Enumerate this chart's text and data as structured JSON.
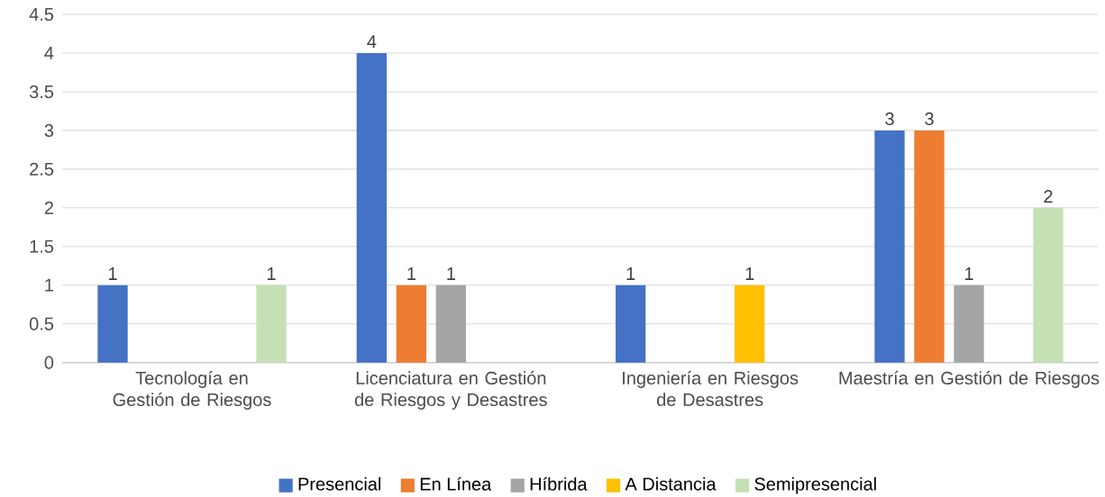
{
  "chart_data": {
    "type": "bar",
    "categories": [
      "Tecnología en Gestión de Riesgos",
      "Licenciatura en Gestión de Riesgos y Desastres",
      "Ingeniería en Riesgos de Desastres",
      "Maestría en Gestión de Riesgos"
    ],
    "series": [
      {
        "name": "Presencial",
        "color": "#4472c4",
        "values": [
          1,
          4,
          1,
          3
        ]
      },
      {
        "name": "En Línea",
        "color": "#ed7d31",
        "values": [
          null,
          1,
          null,
          3
        ]
      },
      {
        "name": "Híbrida",
        "color": "#a5a5a5",
        "values": [
          null,
          1,
          null,
          1
        ]
      },
      {
        "name": "A Distancia",
        "color": "#ffc000",
        "values": [
          null,
          null,
          1,
          null
        ]
      },
      {
        "name": "Semipresencial",
        "color": "#c5e0b4",
        "values": [
          1,
          null,
          null,
          2
        ]
      }
    ],
    "ylim": [
      0,
      4.5
    ],
    "yticks": [
      0,
      0.5,
      1,
      1.5,
      2,
      2.5,
      3,
      3.5,
      4,
      4.5
    ],
    "grid": "y",
    "legend": "bottom",
    "data_labels": true
  }
}
